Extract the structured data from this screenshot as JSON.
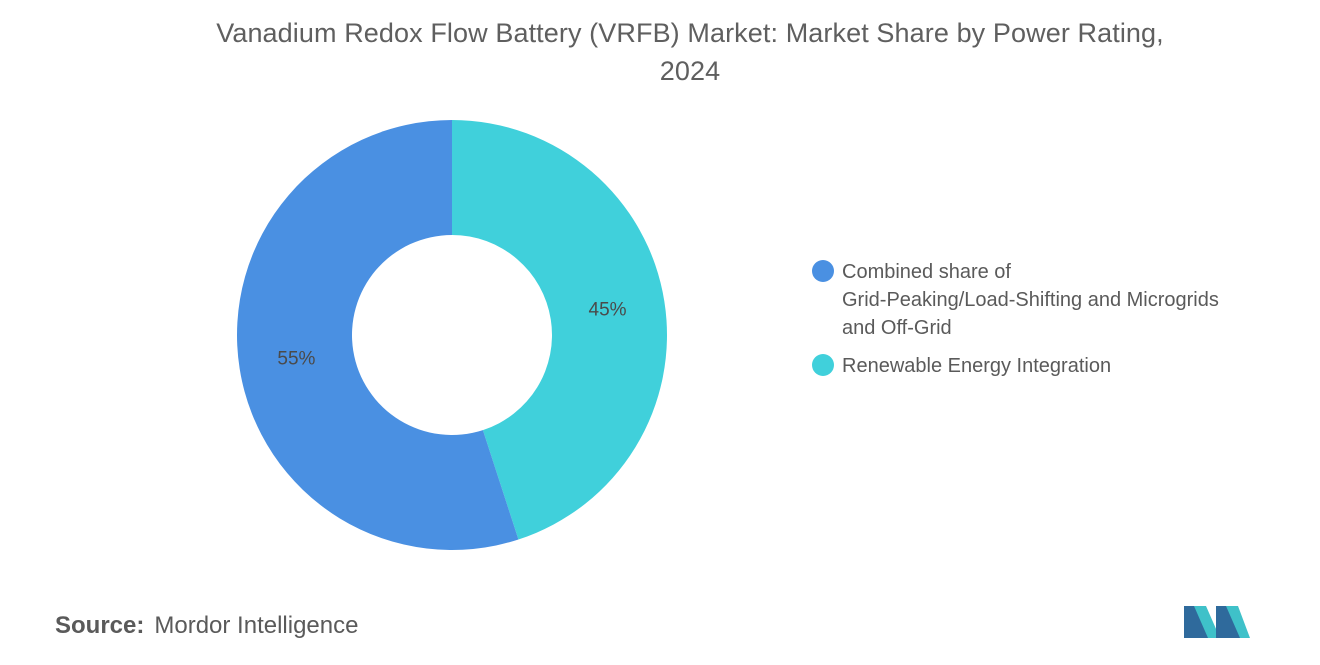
{
  "chart_data": {
    "type": "pie",
    "title": "Vanadium Redox Flow Battery (VRFB) Market: Market Share by Power Rating,",
    "title_line2": "2024",
    "slices": [
      {
        "label": "Renewable Energy Integration",
        "value": 45,
        "value_label": "45%",
        "color": "#40d0db"
      },
      {
        "label": "Combined share of Grid-Peaking/Load-Shifting and Microgrids and Off-Grid",
        "value": 55,
        "value_label": "55%",
        "color": "#4a90e2"
      }
    ],
    "legend_placement": "right",
    "legend": [
      {
        "lines": [
          "Combined share of",
          "Grid-Peaking/Load-Shifting and Microgrids",
          "and Off-Grid"
        ],
        "color": "#4a90e2"
      },
      {
        "lines": [
          "Renewable Energy Integration"
        ],
        "color": "#40d0db"
      }
    ]
  },
  "source": {
    "label": "Source:",
    "text": "Mordor Intelligence"
  },
  "logo": {
    "icon": "mordor-intelligence-logo",
    "colors": [
      "#1f4e79",
      "#3fc1c9"
    ]
  }
}
